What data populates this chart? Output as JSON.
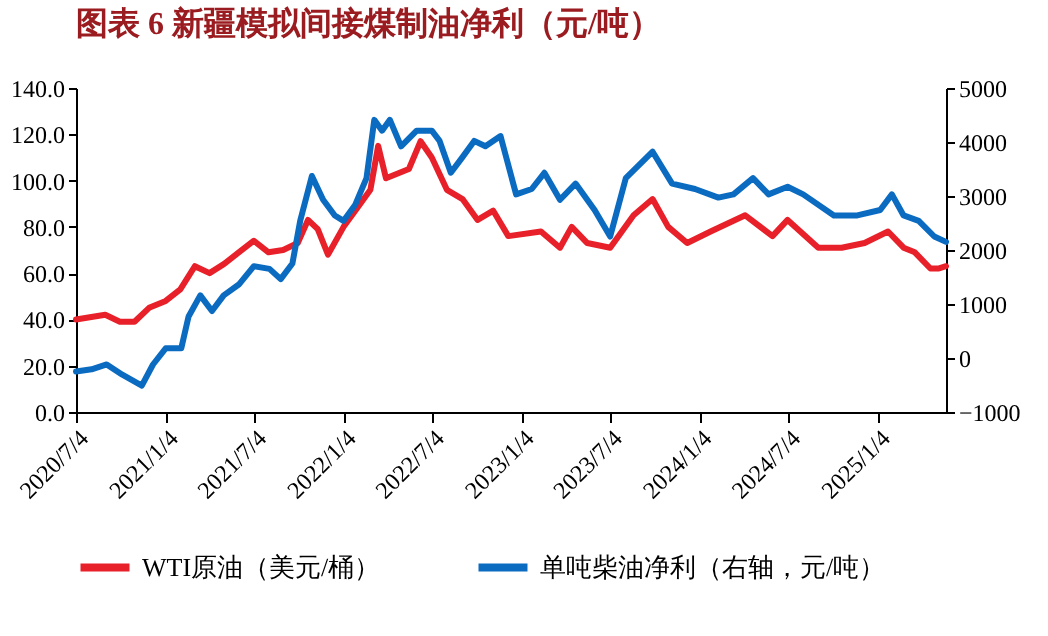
{
  "chart_data": {
    "type": "line",
    "title": "图表 6 新疆模拟间接煤制油净利（元/吨）",
    "xlim": [
      "2020-07-04",
      "2025-05-24"
    ],
    "xticks": [
      {
        "value": "2020-07-04",
        "label": "2020/7/4"
      },
      {
        "value": "2021-01-04",
        "label": "2021/1/4"
      },
      {
        "value": "2021-07-04",
        "label": "2021/7/4"
      },
      {
        "value": "2022-01-04",
        "label": "2022/1/4"
      },
      {
        "value": "2022-07-04",
        "label": "2022/7/4"
      },
      {
        "value": "2023-01-04",
        "label": "2023/1/4"
      },
      {
        "value": "2023-07-04",
        "label": "2023/7/4"
      },
      {
        "value": "2024-01-04",
        "label": "2024/1/4"
      },
      {
        "value": "2024-07-04",
        "label": "2024/7/4"
      },
      {
        "value": "2025-01-04",
        "label": "2025/1/4"
      }
    ],
    "ylim": [
      0,
      140
    ],
    "yticks": [
      {
        "value": 0,
        "label": "0.0"
      },
      {
        "value": 20,
        "label": "20.0"
      },
      {
        "value": 40,
        "label": "40.0"
      },
      {
        "value": 60,
        "label": "60.0"
      },
      {
        "value": 80,
        "label": "80.0"
      },
      {
        "value": 100,
        "label": "100.0"
      },
      {
        "value": 120,
        "label": "120.0"
      },
      {
        "value": 140,
        "label": "140.0"
      }
    ],
    "y2lim": [
      -1000,
      5000
    ],
    "y2ticks": [
      -1000,
      0,
      1000,
      2000,
      3000,
      4000,
      5000
    ],
    "grid": false,
    "legend": "bottom",
    "line_style": "solid",
    "series": [
      {
        "name": "WTI原油（美元/桶）",
        "color": "#e8202a",
        "x": [
          "2020-07-04",
          "2020-09-02",
          "2020-10-02",
          "2020-11-01",
          "2020-12-01",
          "2021-01-04",
          "2021-02-03",
          "2021-03-05",
          "2021-04-04",
          "2021-05-04",
          "2021-06-03",
          "2021-07-04",
          "2021-08-03",
          "2021-09-02",
          "2021-10-02",
          "2021-10-23",
          "2021-11-12",
          "2021-12-03",
          "2022-01-04",
          "2022-01-28",
          "2022-02-28",
          "2022-03-16",
          "2022-04-01",
          "2022-05-18",
          "2022-06-11",
          "2022-07-04",
          "2022-08-04",
          "2022-09-05",
          "2022-10-06",
          "2022-11-07",
          "2022-12-08",
          "2023-02-13",
          "2023-03-24",
          "2023-04-17",
          "2023-05-19",
          "2023-07-05",
          "2023-08-22",
          "2023-09-30",
          "2023-11-01",
          "2023-12-10",
          "2024-01-27",
          "2024-04-07",
          "2024-06-02",
          "2024-07-03",
          "2024-09-04",
          "2024-10-22",
          "2024-12-08",
          "2025-01-25",
          "2025-02-26",
          "2025-03-21",
          "2025-04-22",
          "2025-05-08",
          "2025-05-24"
        ],
        "values": [
          40,
          42,
          39,
          39,
          45,
          48,
          53,
          63,
          60,
          64,
          69,
          74,
          69,
          70,
          73,
          83,
          79,
          68,
          80,
          87,
          96,
          115,
          101,
          105,
          117,
          110,
          96,
          92,
          83,
          87,
          76,
          78,
          71,
          80,
          73,
          71,
          85,
          92,
          80,
          73,
          78,
          85,
          76,
          83,
          71,
          71,
          73,
          78,
          71,
          69,
          62,
          62,
          63
        ]
      },
      {
        "name": "单吨柴油净利（右轴，元/吨）",
        "color": "#0a6bc1",
        "axis": "y2",
        "x": [
          "2020-07-04",
          "2020-08-05",
          "2020-09-05",
          "2020-10-07",
          "2020-11-16",
          "2020-12-09",
          "2021-01-04",
          "2021-02-05",
          "2021-02-20",
          "2021-03-16",
          "2021-04-09",
          "2021-05-03",
          "2021-06-03",
          "2021-07-04",
          "2021-08-05",
          "2021-08-28",
          "2021-09-21",
          "2021-10-07",
          "2021-10-31",
          "2021-11-23",
          "2021-12-17",
          "2022-01-04",
          "2022-01-28",
          "2022-02-20",
          "2022-03-08",
          "2022-03-24",
          "2022-04-09",
          "2022-05-02",
          "2022-06-03",
          "2022-07-04",
          "2022-07-20",
          "2022-08-12",
          "2022-09-05",
          "2022-09-29",
          "2022-10-22",
          "2022-11-22",
          "2022-12-24",
          "2023-01-25",
          "2023-02-20",
          "2023-03-24",
          "2023-04-25",
          "2023-06-03",
          "2023-07-05",
          "2023-08-06",
          "2023-09-30",
          "2023-11-09",
          "2023-12-26",
          "2024-02-12",
          "2024-03-14",
          "2024-04-23",
          "2024-05-25",
          "2024-07-03",
          "2024-08-04",
          "2024-10-06",
          "2024-11-23",
          "2025-01-09",
          "2025-02-02",
          "2025-02-26",
          "2025-03-29",
          "2025-04-30",
          "2025-05-24"
        ],
        "values": [
          -250,
          -210,
          -120,
          -310,
          -510,
          -120,
          180,
          180,
          770,
          1160,
          870,
          1160,
          1360,
          1700,
          1650,
          1460,
          1750,
          2540,
          3370,
          2930,
          2640,
          2540,
          2840,
          3330,
          4410,
          4210,
          4410,
          3920,
          4210,
          4210,
          4020,
          3430,
          3720,
          4020,
          3920,
          4110,
          3030,
          3130,
          3430,
          2930,
          3230,
          2740,
          2250,
          3330,
          3820,
          3230,
          3130,
          2970,
          3030,
          3330,
          3030,
          3170,
          3030,
          2640,
          2640,
          2740,
          3030,
          2640,
          2540,
          2250,
          2150
        ]
      }
    ]
  }
}
